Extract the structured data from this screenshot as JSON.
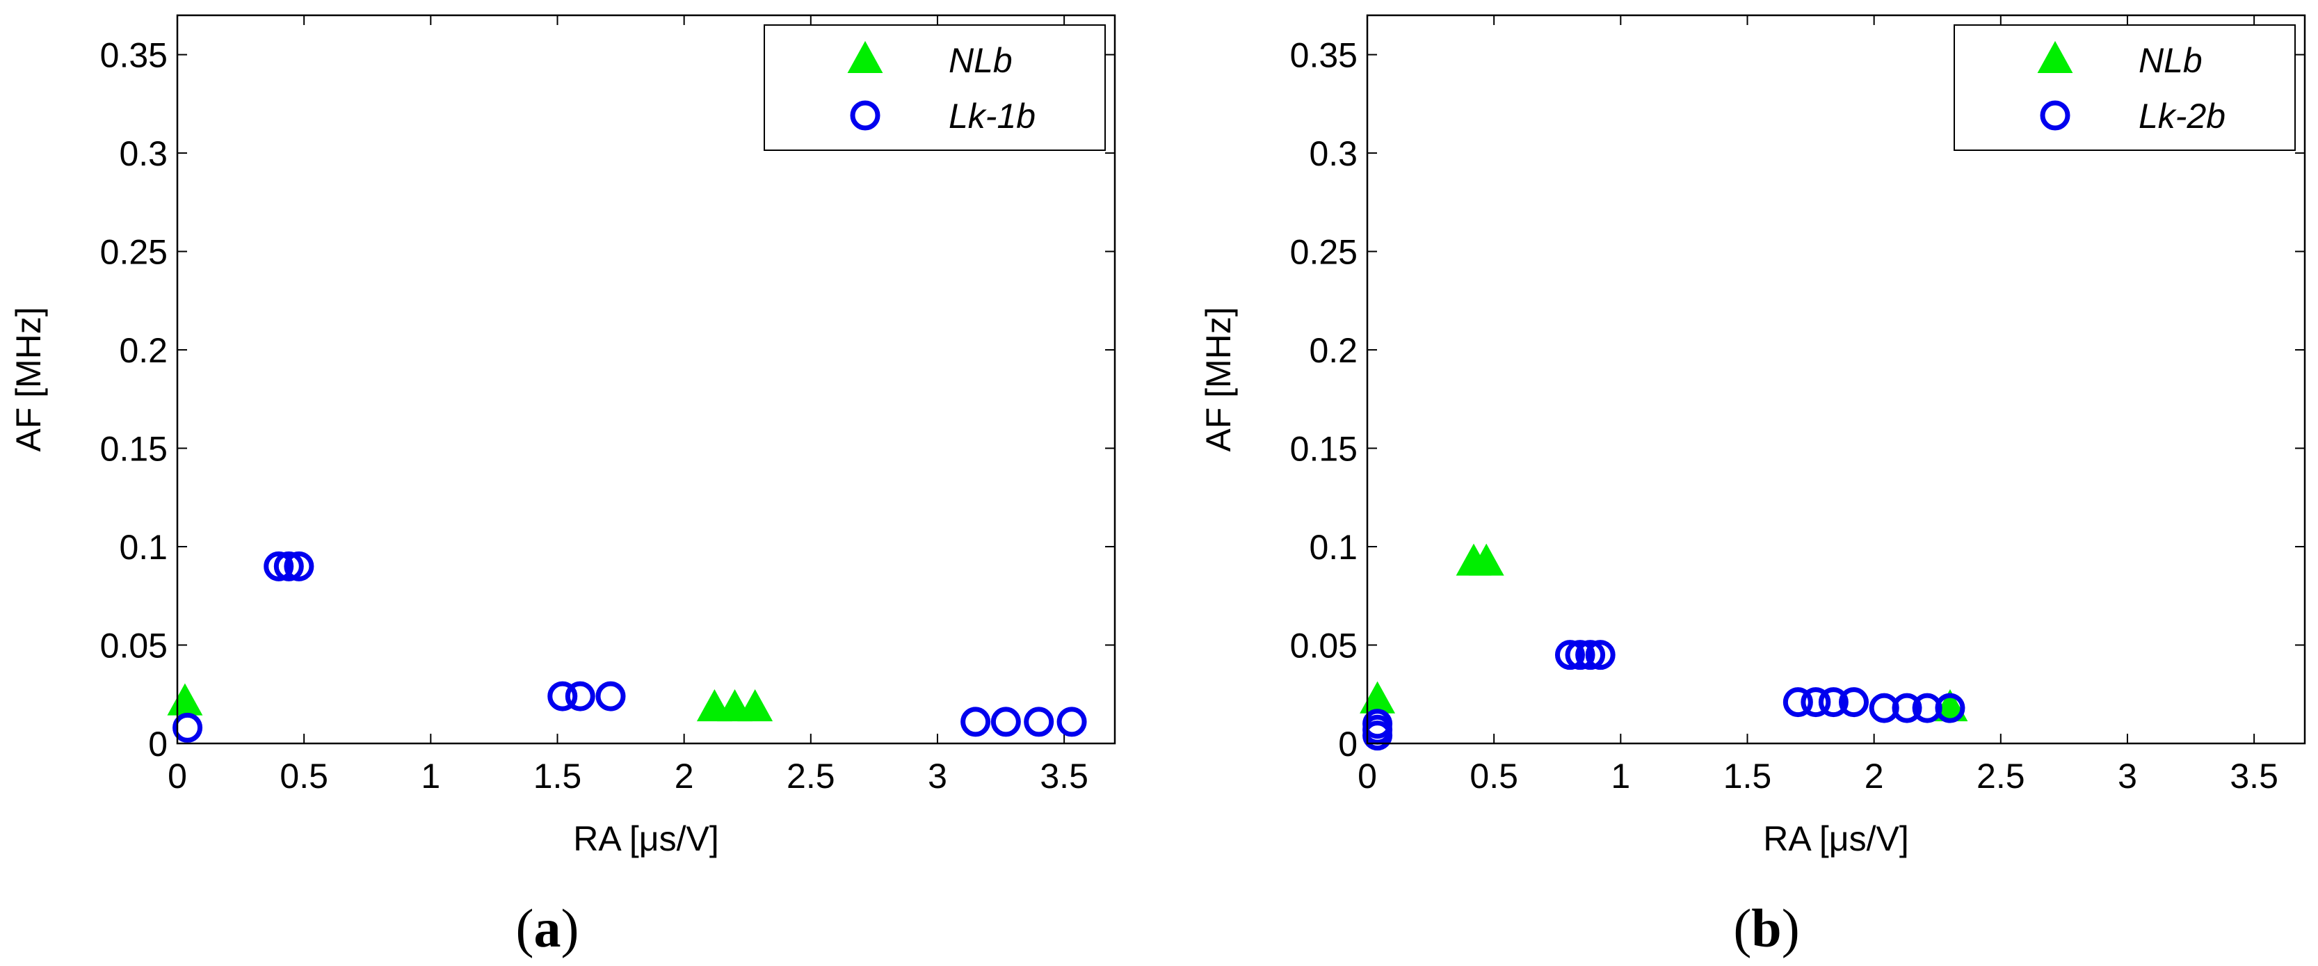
{
  "colors": {
    "nlb": "#00ee00",
    "lk": "#0000ee",
    "axis": "#000000",
    "background": "#ffffff"
  },
  "chart_data": [
    {
      "type": "scatter",
      "panel_label": "a",
      "caption": {
        "open": "(",
        "label": "a",
        "close": ")"
      },
      "xlabel": "RA [μs/V]",
      "ylabel": "AF [MHz]",
      "xlim": [
        0,
        3.7
      ],
      "ylim": [
        0,
        0.37
      ],
      "xticks": [
        0,
        0.5,
        1,
        1.5,
        2,
        2.5,
        3,
        3.5
      ],
      "xtick_labels": [
        "0",
        "0.5",
        "1",
        "1.5",
        "2",
        "2.5",
        "3",
        "3.5"
      ],
      "yticks": [
        0,
        0.05,
        0.1,
        0.15,
        0.2,
        0.25,
        0.3,
        0.35
      ],
      "ytick_labels": [
        "0",
        "0.05",
        "0.1",
        "0.15",
        "0.2",
        "0.25",
        "0.3",
        "0.35"
      ],
      "legend_position": "top-right",
      "series": [
        {
          "name": "NLb",
          "marker": "triangle",
          "color": "#00ee00",
          "points": [
            [
              0.03,
              0.021
            ],
            [
              2.12,
              0.018
            ],
            [
              2.2,
              0.018
            ],
            [
              2.28,
              0.018
            ]
          ]
        },
        {
          "name": "Lk-1b",
          "marker": "circle",
          "color": "#0000ee",
          "points": [
            [
              0.04,
              0.008
            ],
            [
              0.4,
              0.09
            ],
            [
              0.44,
              0.09
            ],
            [
              0.48,
              0.09
            ],
            [
              1.52,
              0.024
            ],
            [
              1.59,
              0.024
            ],
            [
              1.71,
              0.024
            ],
            [
              3.15,
              0.011
            ],
            [
              3.27,
              0.011
            ],
            [
              3.4,
              0.011
            ],
            [
              3.53,
              0.011
            ]
          ]
        }
      ]
    },
    {
      "type": "scatter",
      "panel_label": "b",
      "caption": {
        "open": "(",
        "label": "b",
        "close": ")"
      },
      "xlabel": "RA [μs/V]",
      "ylabel": "AF [MHz]",
      "xlim": [
        0,
        3.7
      ],
      "ylim": [
        0,
        0.37
      ],
      "xticks": [
        0,
        0.5,
        1,
        1.5,
        2,
        2.5,
        3,
        3.5
      ],
      "xtick_labels": [
        "0",
        "0.5",
        "1",
        "1.5",
        "2",
        "2.5",
        "3",
        "3.5"
      ],
      "yticks": [
        0,
        0.05,
        0.1,
        0.15,
        0.2,
        0.25,
        0.3,
        0.35
      ],
      "ytick_labels": [
        "0",
        "0.05",
        "0.1",
        "0.15",
        "0.2",
        "0.25",
        "0.3",
        "0.35"
      ],
      "legend_position": "top-right",
      "series": [
        {
          "name": "NLb",
          "marker": "triangle",
          "color": "#00ee00",
          "points": [
            [
              0.04,
              0.022
            ],
            [
              0.42,
              0.092
            ],
            [
              0.47,
              0.092
            ],
            [
              2.3,
              0.018
            ]
          ]
        },
        {
          "name": "Lk-2b",
          "marker": "circle",
          "color": "#0000ee",
          "points": [
            [
              0.04,
              0.004
            ],
            [
              0.04,
              0.007
            ],
            [
              0.04,
              0.01
            ],
            [
              0.8,
              0.045
            ],
            [
              0.84,
              0.045
            ],
            [
              0.88,
              0.045
            ],
            [
              0.92,
              0.045
            ],
            [
              1.7,
              0.021
            ],
            [
              1.77,
              0.021
            ],
            [
              1.84,
              0.021
            ],
            [
              1.92,
              0.021
            ],
            [
              2.04,
              0.018
            ],
            [
              2.13,
              0.018
            ],
            [
              2.21,
              0.018
            ],
            [
              2.3,
              0.018
            ]
          ]
        }
      ]
    }
  ]
}
